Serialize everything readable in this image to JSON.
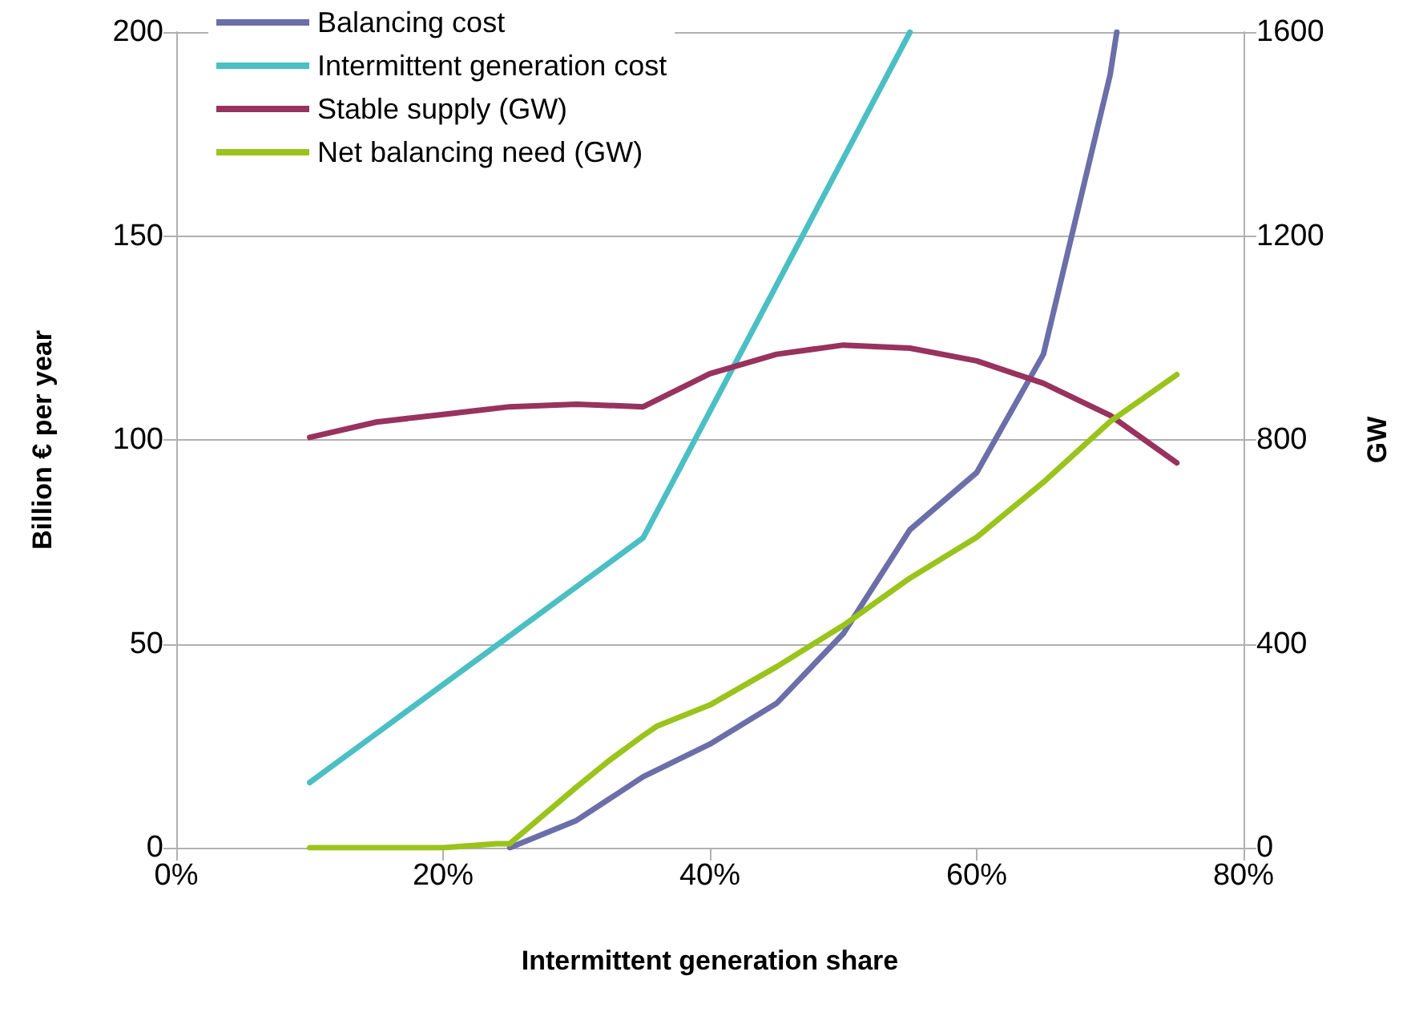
{
  "chart_data": {
    "type": "line",
    "xlabel": "Intermittent generation share",
    "ylabel": "Billion € per year",
    "y2label": "GW",
    "xlim": [
      0,
      80
    ],
    "xticks": [
      {
        "value": 0,
        "label": "0%"
      },
      {
        "value": 20,
        "label": "20%"
      },
      {
        "value": 40,
        "label": "40%"
      },
      {
        "value": 60,
        "label": "60%"
      },
      {
        "value": 80,
        "label": "80%"
      }
    ],
    "ylim": [
      0,
      200
    ],
    "yticks": [
      0,
      50,
      100,
      150,
      200
    ],
    "y2lim": [
      0,
      1600
    ],
    "y2ticks": [
      0,
      400,
      800,
      1200,
      1600
    ],
    "grid": "y",
    "legend": "top left",
    "marker": "none",
    "line_style": "solid",
    "series": [
      {
        "name": "Balancing cost",
        "color": "#6b6ea8",
        "x": [
          25,
          30,
          35,
          40,
          45,
          50,
          55,
          60,
          65,
          70,
          70.5
        ],
        "values": [
          0,
          6.7,
          17.4,
          25.4,
          35.4,
          52.5,
          78,
          92,
          121,
          189.5,
          200
        ]
      },
      {
        "name": "Intermittent generation cost",
        "color": "#4bbfc3",
        "x": [
          10,
          15,
          20,
          25,
          30,
          35,
          40,
          45,
          50,
          55
        ],
        "values": [
          16,
          28,
          40,
          52,
          64,
          76,
          107,
          138,
          169,
          200
        ]
      },
      {
        "name": "Stable supply (GW)",
        "color": "#98325e",
        "axis": "y2",
        "x": [
          10,
          15,
          20,
          25,
          30,
          35,
          40,
          45,
          50,
          55,
          60,
          65,
          70,
          75
        ],
        "values": [
          805,
          835,
          850,
          865,
          870,
          865,
          930,
          968,
          986,
          980,
          955,
          911,
          848,
          755
        ]
      },
      {
        "name": "Net balancing need (GW)",
        "color": "#9ac31c",
        "axis": "y2",
        "x": [
          10,
          15,
          20,
          24,
          25,
          30,
          32.5,
          35,
          36,
          40,
          45,
          50,
          55,
          60,
          65,
          70,
          75
        ],
        "values": [
          0,
          0,
          0,
          8,
          8,
          119,
          172,
          220,
          238,
          280,
          355,
          436,
          529,
          609,
          717,
          836,
          928
        ]
      }
    ]
  }
}
